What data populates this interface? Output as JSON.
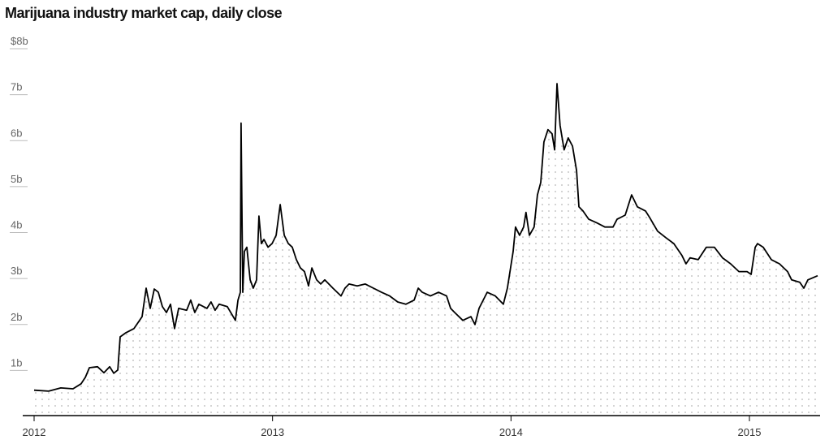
{
  "chart_data": {
    "type": "line",
    "title": "Marijuana industry market cap, daily close",
    "color": "#000000",
    "xlim": [
      2012,
      2015.286
    ],
    "xticks": [
      2012,
      2013,
      2014,
      2015
    ],
    "ylim": [
      0,
      8
    ],
    "yticks": [
      {
        "value": 1,
        "label": "1b"
      },
      {
        "value": 2,
        "label": "2b"
      },
      {
        "value": 3,
        "label": "3b"
      },
      {
        "value": 4,
        "label": "4b"
      },
      {
        "value": 5,
        "label": "5b"
      },
      {
        "value": 6,
        "label": "6b"
      },
      {
        "value": 7,
        "label": "7b"
      },
      {
        "value": 8,
        "label": "$8b"
      }
    ],
    "x": [
      2012.0,
      2012.061,
      2012.112,
      2012.163,
      2012.197,
      2012.215,
      2012.232,
      2012.266,
      2012.293,
      2012.317,
      2012.334,
      2012.351,
      2012.361,
      2012.385,
      2012.419,
      2012.453,
      2012.47,
      2012.487,
      2012.504,
      2012.521,
      2012.538,
      2012.555,
      2012.572,
      2012.589,
      2012.606,
      2012.64,
      2012.657,
      2012.674,
      2012.691,
      2012.725,
      2012.742,
      2012.759,
      2012.776,
      2012.81,
      2012.844,
      2012.855,
      2012.865,
      2012.868,
      2012.875,
      2012.882,
      2012.892,
      2012.906,
      2012.919,
      2012.933,
      2012.943,
      2012.953,
      2012.964,
      2012.981,
      2012.998,
      2013.015,
      2013.032,
      2013.049,
      2013.066,
      2013.083,
      2013.1,
      2013.117,
      2013.134,
      2013.151,
      2013.165,
      2013.185,
      2013.202,
      2013.219,
      2013.253,
      2013.287,
      2013.304,
      2013.321,
      2013.355,
      2013.389,
      2013.423,
      2013.457,
      2013.491,
      2013.525,
      2013.559,
      2013.594,
      2013.611,
      2013.628,
      2013.662,
      2013.696,
      2013.73,
      2013.747,
      2013.764,
      2013.798,
      2013.832,
      2013.849,
      2013.866,
      2013.9,
      2013.934,
      2013.968,
      2013.985,
      2014.009,
      2014.019,
      2014.036,
      2014.053,
      2014.063,
      2014.077,
      2014.097,
      2014.111,
      2014.125,
      2014.138,
      2014.155,
      2014.172,
      2014.183,
      2014.193,
      2014.206,
      2014.223,
      2014.24,
      2014.258,
      2014.275,
      2014.285,
      2014.302,
      2014.326,
      2014.36,
      2014.394,
      2014.428,
      2014.445,
      2014.479,
      2014.506,
      2014.53,
      2014.564,
      2014.581,
      2014.615,
      2014.649,
      2014.683,
      2014.717,
      2014.734,
      2014.751,
      2014.785,
      2014.819,
      2014.853,
      2014.887,
      2014.921,
      2014.956,
      2014.99,
      2015.007,
      2015.024,
      2015.034,
      2015.058,
      2015.092,
      2015.126,
      2015.16,
      2015.177,
      2015.211,
      2015.228,
      2015.245,
      2015.286
    ],
    "series": [
      {
        "name": "Market cap",
        "color": "#000000",
        "values": [
          0.57,
          0.55,
          0.62,
          0.6,
          0.71,
          0.85,
          1.06,
          1.08,
          0.95,
          1.08,
          0.94,
          1.01,
          1.73,
          1.82,
          1.91,
          2.17,
          2.79,
          2.35,
          2.77,
          2.7,
          2.39,
          2.26,
          2.44,
          1.91,
          2.35,
          2.31,
          2.53,
          2.26,
          2.44,
          2.35,
          2.49,
          2.31,
          2.44,
          2.39,
          2.09,
          2.53,
          2.7,
          6.38,
          2.7,
          3.59,
          3.68,
          2.97,
          2.79,
          2.97,
          4.36,
          3.76,
          3.85,
          3.68,
          3.76,
          3.94,
          4.61,
          3.94,
          3.76,
          3.68,
          3.41,
          3.23,
          3.15,
          2.84,
          3.23,
          2.97,
          2.88,
          2.97,
          2.79,
          2.62,
          2.79,
          2.88,
          2.84,
          2.88,
          2.79,
          2.7,
          2.62,
          2.49,
          2.44,
          2.53,
          2.79,
          2.7,
          2.62,
          2.7,
          2.62,
          2.35,
          2.26,
          2.09,
          2.17,
          2.0,
          2.35,
          2.7,
          2.62,
          2.44,
          2.79,
          3.59,
          4.12,
          3.94,
          4.12,
          4.44,
          3.94,
          4.12,
          4.82,
          5.09,
          5.97,
          6.24,
          6.15,
          5.8,
          7.24,
          6.33,
          5.8,
          6.06,
          5.88,
          5.35,
          4.56,
          4.47,
          4.29,
          4.21,
          4.12,
          4.12,
          4.29,
          4.38,
          4.82,
          4.56,
          4.47,
          4.33,
          4.03,
          3.89,
          3.76,
          3.5,
          3.32,
          3.45,
          3.41,
          3.68,
          3.68,
          3.45,
          3.32,
          3.15,
          3.15,
          3.09,
          3.68,
          3.76,
          3.68,
          3.41,
          3.32,
          3.15,
          2.97,
          2.92,
          2.79,
          2.97,
          3.06
        ]
      }
    ]
  }
}
